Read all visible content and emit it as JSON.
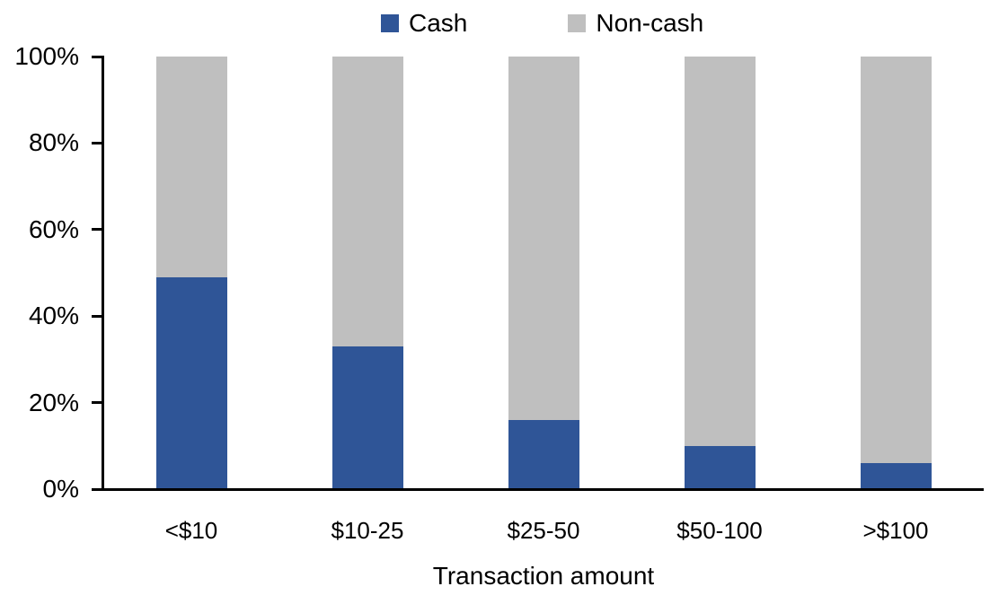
{
  "chart_data": {
    "type": "bar",
    "stacked": true,
    "percent_stacked": true,
    "title": "",
    "xlabel": "Transaction amount",
    "ylabel": "",
    "categories": [
      "<$10",
      "$10-25",
      "$25-50",
      "$50-100",
      ">$100"
    ],
    "series": [
      {
        "name": "Cash",
        "color": "#2F5597",
        "values": [
          49,
          33,
          16,
          10,
          6
        ]
      },
      {
        "name": "Non-cash",
        "color": "#BFBFBF",
        "values": [
          51,
          67,
          84,
          90,
          94
        ]
      }
    ],
    "ylim": [
      0,
      100
    ],
    "y_ticks": [
      0,
      20,
      40,
      60,
      80,
      100
    ],
    "y_tick_labels": [
      "0%",
      "20%",
      "40%",
      "60%",
      "80%",
      "100%"
    ],
    "grid": false,
    "legend_position": "top-center",
    "axis_color": "#000000",
    "text_color": "#000000",
    "background_color": "#FFFFFF"
  }
}
